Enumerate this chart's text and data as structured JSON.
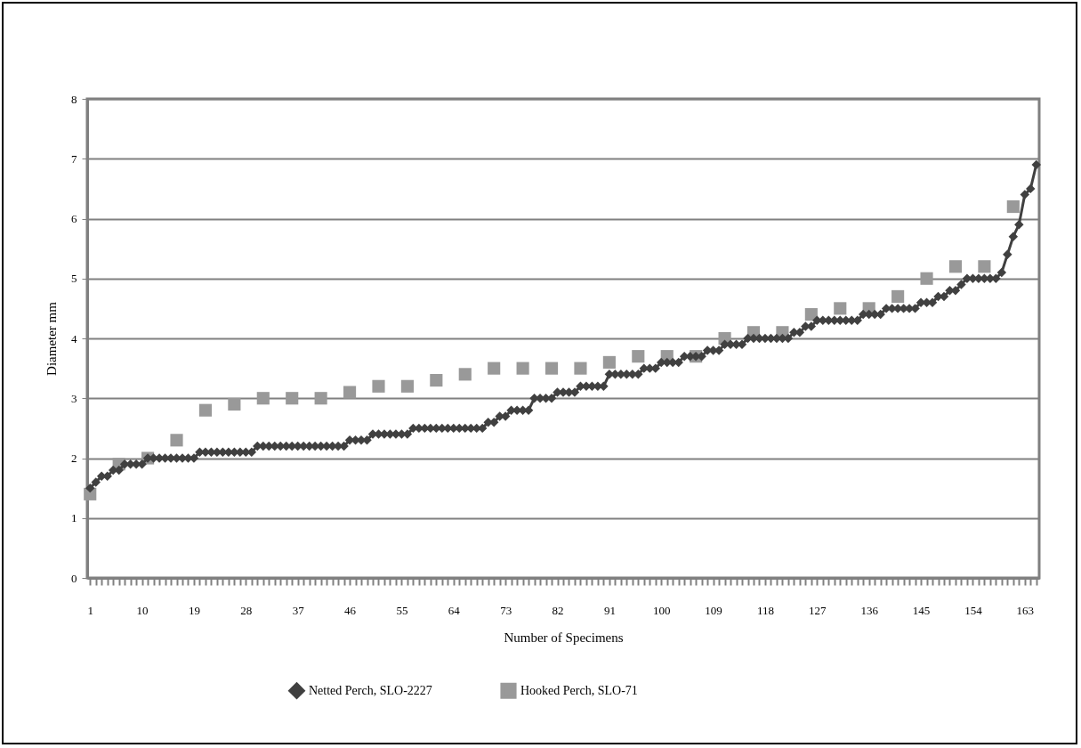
{
  "chart_data": {
    "type": "line",
    "xlabel": "Number of Specimens",
    "ylabel": "Diameter mm",
    "categories": [
      "1",
      null,
      null,
      null,
      null,
      null,
      null,
      null,
      null,
      "10",
      null,
      null,
      null,
      null,
      null,
      null,
      null,
      null,
      "19",
      null,
      null,
      null,
      null,
      null,
      null,
      null,
      null,
      "28",
      null,
      null,
      null,
      null,
      null,
      null,
      null,
      null,
      "37",
      null,
      null,
      null,
      null,
      null,
      null,
      null,
      null,
      "46",
      null,
      null,
      null,
      null,
      null,
      null,
      null,
      null,
      "55",
      null,
      null,
      null,
      null,
      null,
      null,
      null,
      null,
      "64",
      null,
      null,
      null,
      null,
      null,
      null,
      null,
      null,
      "73",
      null,
      null,
      null,
      null,
      null,
      null,
      null,
      null,
      "82",
      null,
      null,
      null,
      null,
      null,
      null,
      null,
      null,
      "91",
      null,
      null,
      null,
      null,
      null,
      null,
      null,
      null,
      "100",
      null,
      null,
      null,
      null,
      null,
      null,
      null,
      null,
      "109",
      null,
      null,
      null,
      null,
      null,
      null,
      null,
      null,
      "118",
      null,
      null,
      null,
      null,
      null,
      null,
      null,
      null,
      "127",
      null,
      null,
      null,
      null,
      null,
      null,
      null,
      null,
      "136",
      null,
      null,
      null,
      null,
      null,
      null,
      null,
      null,
      "145",
      null,
      null,
      null,
      null,
      null,
      null,
      null,
      null,
      "154",
      null,
      null,
      null,
      null,
      null,
      null,
      null,
      null,
      "163",
      null,
      null
    ],
    "series": [
      {
        "name": "Netted Perch, SLO-2227",
        "color": "#404040",
        "marker": "diamond",
        "values": [
          1.5,
          1.6,
          1.7,
          1.7,
          1.8,
          1.8,
          1.9,
          1.9,
          1.9,
          1.9,
          2.0,
          2.0,
          2.0,
          2.0,
          2.0,
          2.0,
          2.0,
          2.0,
          2.0,
          2.1,
          2.1,
          2.1,
          2.1,
          2.1,
          2.1,
          2.1,
          2.1,
          2.1,
          2.1,
          2.2,
          2.2,
          2.2,
          2.2,
          2.2,
          2.2,
          2.2,
          2.2,
          2.2,
          2.2,
          2.2,
          2.2,
          2.2,
          2.2,
          2.2,
          2.2,
          2.3,
          2.3,
          2.3,
          2.3,
          2.4,
          2.4,
          2.4,
          2.4,
          2.4,
          2.4,
          2.4,
          2.5,
          2.5,
          2.5,
          2.5,
          2.5,
          2.5,
          2.5,
          2.5,
          2.5,
          2.5,
          2.5,
          2.5,
          2.5,
          2.6,
          2.6,
          2.7,
          2.7,
          2.8,
          2.8,
          2.8,
          2.8,
          3.0,
          3.0,
          3.0,
          3.0,
          3.1,
          3.1,
          3.1,
          3.1,
          3.2,
          3.2,
          3.2,
          3.2,
          3.2,
          3.4,
          3.4,
          3.4,
          3.4,
          3.4,
          3.4,
          3.5,
          3.5,
          3.5,
          3.6,
          3.6,
          3.6,
          3.6,
          3.7,
          3.7,
          3.7,
          3.7,
          3.8,
          3.8,
          3.8,
          3.9,
          3.9,
          3.9,
          3.9,
          4.0,
          4.0,
          4.0,
          4.0,
          4.0,
          4.0,
          4.0,
          4.0,
          4.1,
          4.1,
          4.2,
          4.2,
          4.3,
          4.3,
          4.3,
          4.3,
          4.3,
          4.3,
          4.3,
          4.3,
          4.4,
          4.4,
          4.4,
          4.4,
          4.5,
          4.5,
          4.5,
          4.5,
          4.5,
          4.5,
          4.6,
          4.6,
          4.6,
          4.7,
          4.7,
          4.8,
          4.8,
          4.9,
          5.0,
          5.0,
          5.0,
          5.0,
          5.0,
          5.0,
          5.1,
          5.4,
          5.7,
          5.9,
          6.4,
          6.5,
          6.9
        ]
      },
      {
        "name": "Hooked Perch, SLO-71",
        "type": "scatter",
        "color": "#999999",
        "marker": "square",
        "values": [
          1.4,
          null,
          null,
          null,
          null,
          1.9,
          null,
          null,
          null,
          null,
          2.0,
          null,
          null,
          null,
          null,
          2.3,
          null,
          null,
          null,
          null,
          2.8,
          null,
          null,
          null,
          null,
          2.9,
          null,
          null,
          null,
          null,
          3.0,
          null,
          null,
          null,
          null,
          3.0,
          null,
          null,
          null,
          null,
          3.0,
          null,
          null,
          null,
          null,
          3.1,
          null,
          null,
          null,
          null,
          3.2,
          null,
          null,
          null,
          null,
          3.2,
          null,
          null,
          null,
          null,
          3.3,
          null,
          null,
          null,
          null,
          3.4,
          null,
          null,
          null,
          null,
          3.5,
          null,
          null,
          null,
          null,
          3.5,
          null,
          null,
          null,
          null,
          3.5,
          null,
          null,
          null,
          null,
          3.5,
          null,
          null,
          null,
          null,
          3.6,
          null,
          null,
          null,
          null,
          3.7,
          null,
          null,
          null,
          null,
          3.7,
          null,
          null,
          null,
          null,
          3.7,
          null,
          null,
          null,
          null,
          4.0,
          null,
          null,
          null,
          null,
          4.1,
          null,
          null,
          null,
          null,
          4.1,
          null,
          null,
          null,
          null,
          4.4,
          null,
          null,
          null,
          null,
          4.5,
          null,
          null,
          null,
          null,
          4.5,
          null,
          null,
          null,
          null,
          4.7,
          null,
          null,
          null,
          null,
          5.0,
          null,
          null,
          null,
          null,
          5.2,
          null,
          null,
          null,
          null,
          5.2,
          null,
          null,
          null,
          null,
          6.2,
          null,
          null,
          null,
          null
        ]
      }
    ],
    "ylim": [
      0,
      8
    ],
    "yticks": [
      0,
      1,
      2,
      3,
      4,
      5,
      6,
      7,
      8
    ],
    "grid": "y",
    "legend": "bottom",
    "line_style": "solid"
  }
}
